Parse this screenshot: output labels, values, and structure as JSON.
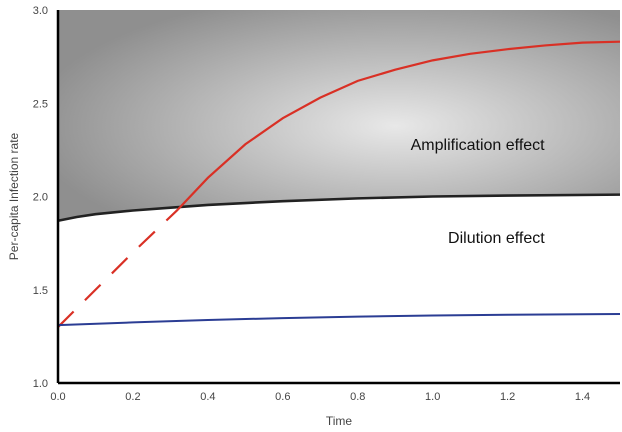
{
  "chart_data": {
    "type": "line",
    "title": "",
    "xlabel": "Time",
    "ylabel": "Per-capita Infection rate",
    "xlim": [
      0,
      1.5
    ],
    "ylim": [
      1.0,
      3.0
    ],
    "x_ticks": [
      "0.0",
      "0.2",
      "0.4",
      "0.6",
      "0.8",
      "1.0",
      "1.2",
      "1.4"
    ],
    "y_ticks": [
      "1.0",
      "1.5",
      "2.0",
      "2.5",
      "3.0"
    ],
    "grid": false,
    "legend": "none",
    "series": [
      {
        "color": "#222222",
        "style": "solid",
        "x": [
          0,
          0.05,
          0.1,
          0.2,
          0.3,
          0.4,
          0.5,
          0.6,
          0.8,
          1.0,
          1.2,
          1.5
        ],
        "y": [
          1.87,
          1.89,
          1.905,
          1.925,
          1.94,
          1.955,
          1.965,
          1.975,
          1.99,
          2.0,
          2.005,
          2.01
        ]
      },
      {
        "color": "#d93025",
        "style": "dashed-then-solid",
        "dash_until_x": 0.32,
        "x": [
          0,
          0.1,
          0.2,
          0.32,
          0.4,
          0.5,
          0.6,
          0.7,
          0.8,
          0.9,
          1.0,
          1.1,
          1.2,
          1.3,
          1.4,
          1.5
        ],
        "y": [
          1.3,
          1.5,
          1.7,
          1.93,
          2.1,
          2.28,
          2.42,
          2.53,
          2.62,
          2.68,
          2.73,
          2.765,
          2.79,
          2.81,
          2.825,
          2.83
        ]
      },
      {
        "color": "#2b3d94",
        "style": "solid",
        "x": [
          0,
          0.2,
          0.4,
          0.6,
          0.8,
          1.0,
          1.2,
          1.5
        ],
        "y": [
          1.31,
          1.325,
          1.338,
          1.348,
          1.356,
          1.362,
          1.366,
          1.37
        ]
      }
    ],
    "annotations": [
      {
        "text": "Amplification effect",
        "x": 1.12,
        "y": 2.25
      },
      {
        "text": "Dilution effect",
        "x": 1.17,
        "y": 1.75
      }
    ],
    "shaded_region": {
      "description": "area above black curve",
      "color_center": "#e6e6e6",
      "color_edge": "#8c8c8c"
    }
  }
}
